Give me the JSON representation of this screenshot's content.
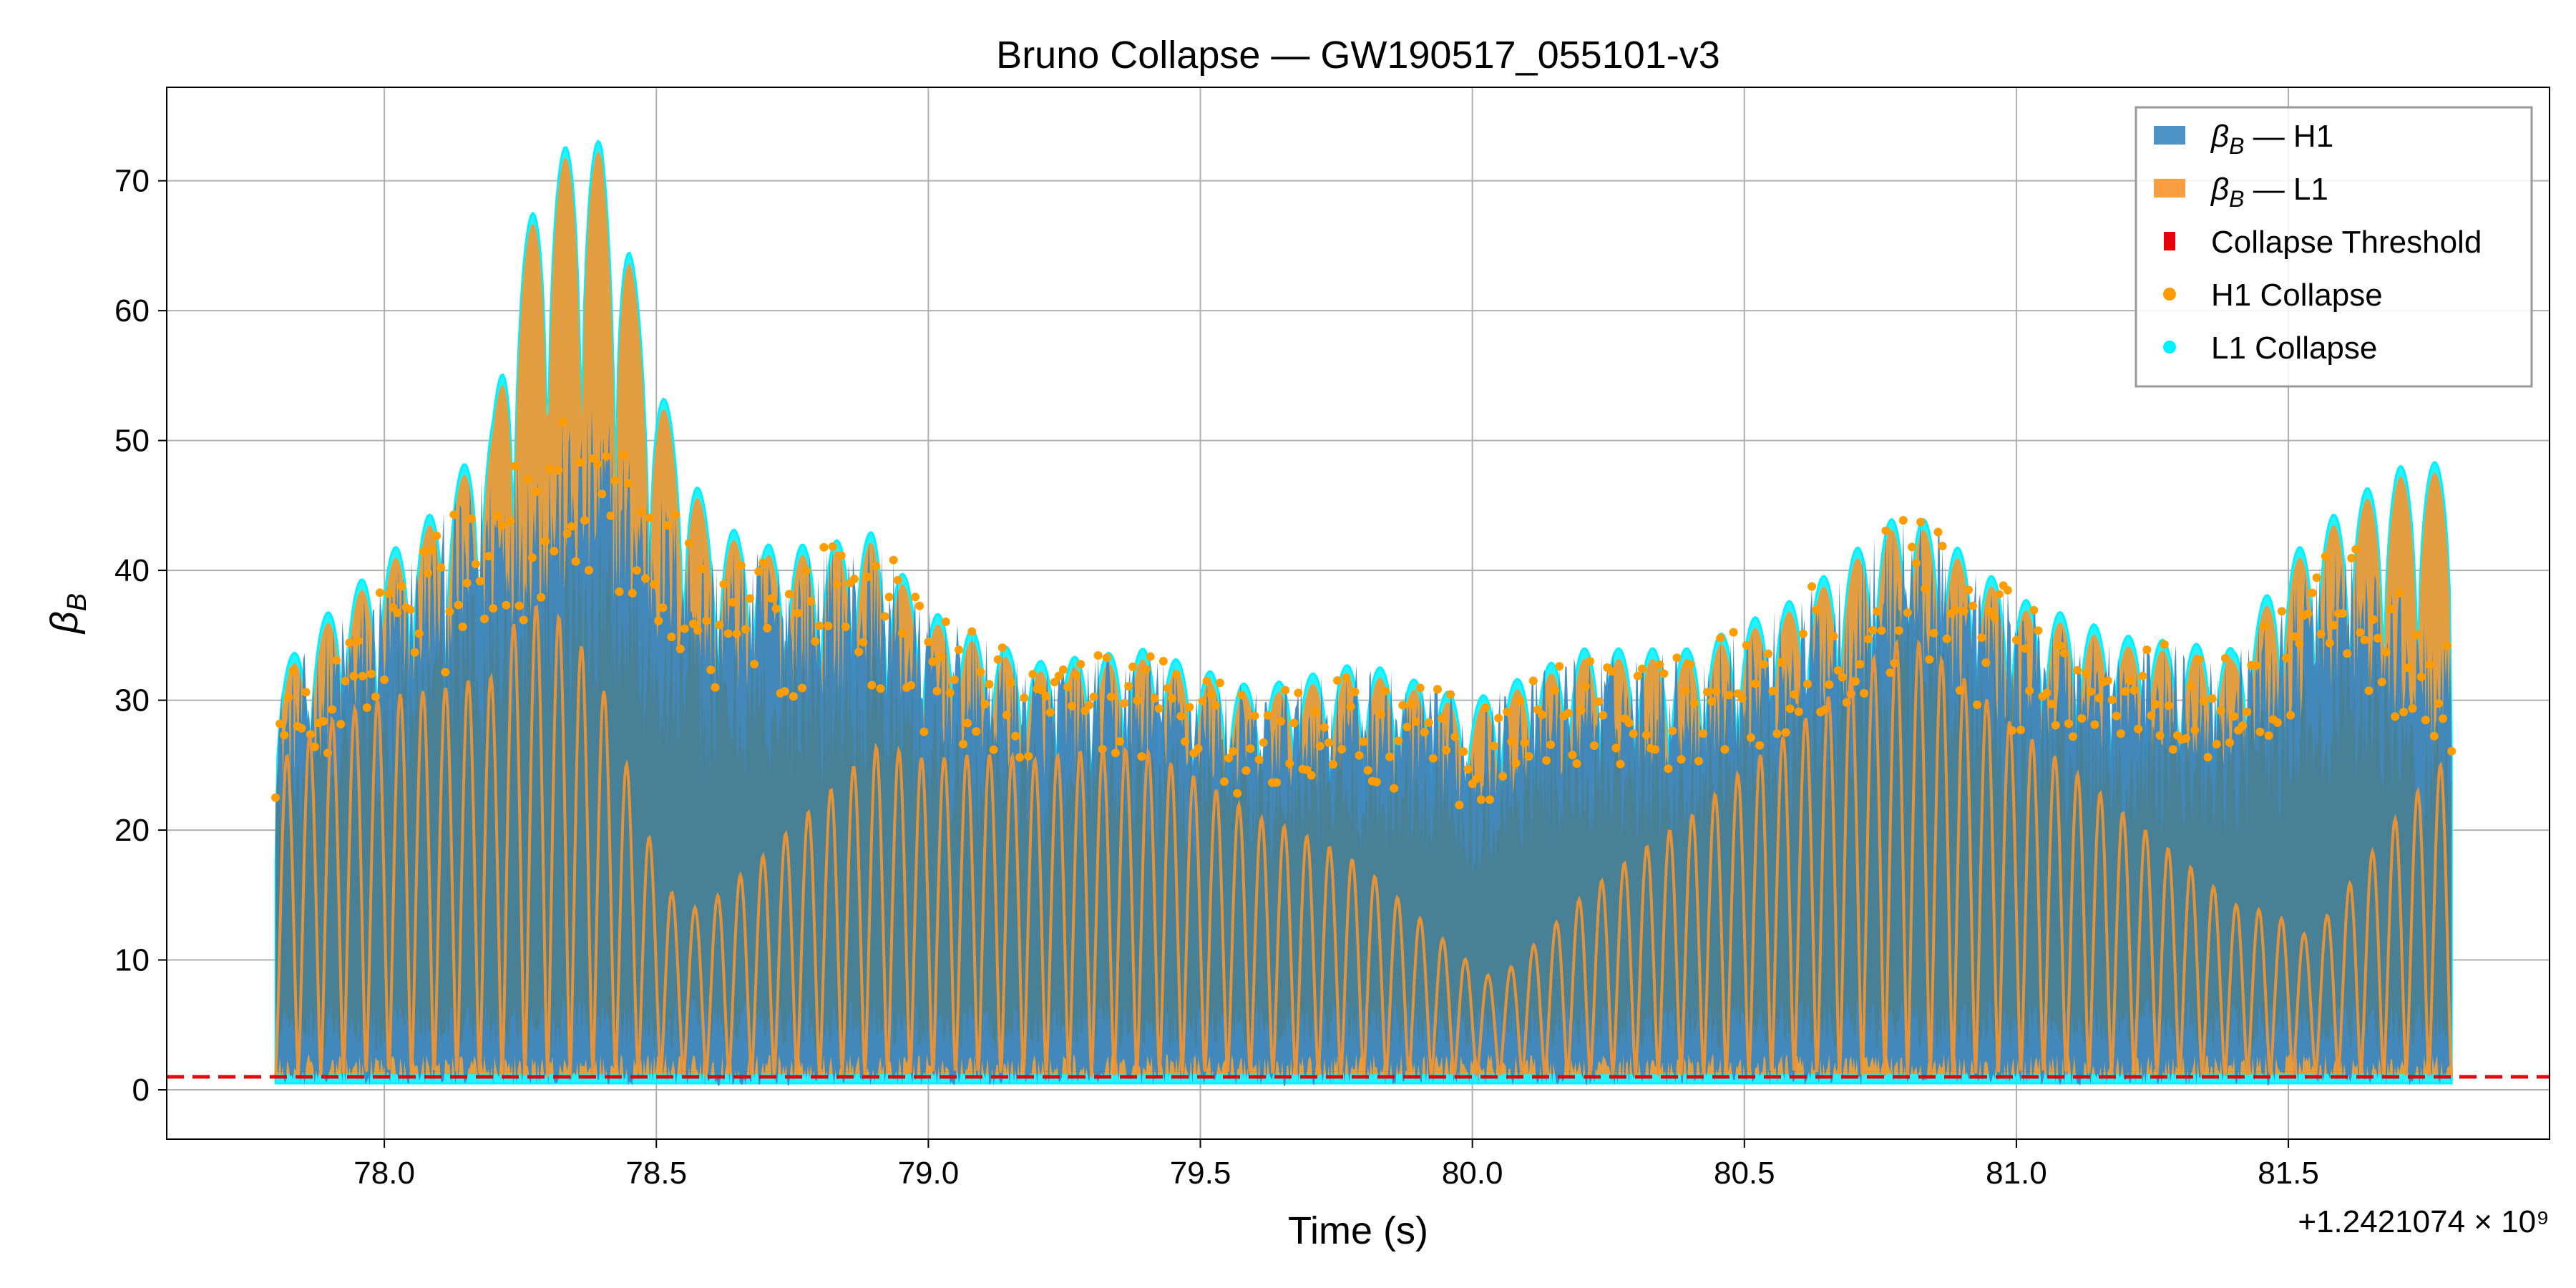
{
  "chart_data": {
    "type": "line",
    "title": "Bruno Collapse — GW190517_055101-v3",
    "xlabel": "Time (s)",
    "ylabel": "β_B",
    "x_offset_label": "+1.2421074 × 10⁹",
    "xlim": [
      77.6,
      81.98
    ],
    "ylim": [
      -3.8,
      77.2
    ],
    "x_ticks": [
      78.0,
      78.5,
      79.0,
      79.5,
      80.0,
      80.5,
      81.0,
      81.5
    ],
    "x_tick_labels": [
      "78.0",
      "78.5",
      "79.0",
      "79.5",
      "80.0",
      "80.5",
      "81.0",
      "81.5"
    ],
    "y_ticks": [
      0,
      10,
      20,
      30,
      40,
      50,
      60,
      70
    ],
    "y_tick_labels": [
      "0",
      "10",
      "20",
      "30",
      "40",
      "50",
      "60",
      "70"
    ],
    "grid": true,
    "legend_position": "top-right",
    "x_range": [
      77.8,
      81.8
    ],
    "threshold": 1.0,
    "series": [
      {
        "name": "β_B — H1",
        "color": "#3a87c2",
        "envelope_x": [
          77.8,
          77.9,
          78.0,
          78.1,
          78.2,
          78.3,
          78.35,
          78.4,
          78.5,
          78.6,
          78.7,
          78.8,
          78.9,
          79.0,
          79.2,
          79.4,
          79.6,
          79.8,
          80.0,
          80.2,
          80.4,
          80.6,
          80.8,
          81.0,
          81.2,
          81.4,
          81.6,
          81.8
        ],
        "envelope_max": [
          31,
          36,
          40,
          44,
          49,
          51,
          52,
          53,
          47,
          42,
          42,
          42,
          43,
          37,
          33,
          34,
          31,
          33,
          30,
          34,
          34,
          38,
          45,
          38,
          35,
          34,
          43,
          34
        ]
      },
      {
        "name": "β_B — L1",
        "color": "#f7952c",
        "envelope_x": [
          77.8,
          77.9,
          78.0,
          78.1,
          78.2,
          78.25,
          78.3,
          78.35,
          78.4,
          78.45,
          78.5,
          78.6,
          78.7,
          78.8,
          78.9,
          79.0,
          79.2,
          79.4,
          79.6,
          79.8,
          80.0,
          80.2,
          80.4,
          80.6,
          80.8,
          81.0,
          81.2,
          81.4,
          81.5,
          81.6,
          81.7,
          81.8
        ],
        "envelope_max": [
          32,
          37,
          41,
          45,
          52,
          65,
          71,
          73.5,
          73,
          65,
          55,
          44,
          42,
          42,
          43,
          37,
          33,
          34,
          31,
          33,
          30,
          34,
          34,
          38,
          45,
          38,
          35,
          34,
          41,
          45,
          48,
          48.5
        ]
      },
      {
        "name": "Collapse Threshold",
        "color": "#e8000b",
        "value": 1.0
      },
      {
        "name": "H1 Collapse",
        "color": "#ff9d00"
      },
      {
        "name": "L1 Collapse",
        "color": "#00f0ff"
      }
    ]
  }
}
